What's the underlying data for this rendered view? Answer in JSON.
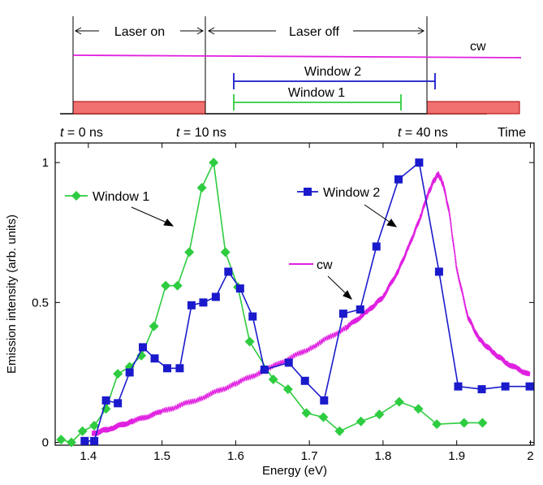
{
  "timing_diagram": {
    "time_axis_label": "Time",
    "ticks": [
      {
        "var": "t",
        "rest": " = 0 ns",
        "t_ns": 0
      },
      {
        "var": "t",
        "rest": " = 10 ns",
        "t_ns": 10
      },
      {
        "var": "t",
        "rest": " = 40 ns",
        "t_ns": 40
      }
    ],
    "laser_on_label": "Laser on",
    "laser_off_label": "Laser off",
    "cw_label": "cw",
    "window1": {
      "label": "Window 1",
      "start_ns": 12,
      "end_ns": 37,
      "color": "#2ecc40"
    },
    "window2": {
      "label": "Window 2",
      "start_ns": 12,
      "end_ns": 41,
      "color": "#1a1acc"
    },
    "pulse_color": "#f07070",
    "cw_color": "#e020e0"
  },
  "chart_data": {
    "type": "line",
    "xlabel": "Energy (eV)",
    "ylabel": "Emission intensity (arb. units)",
    "xlim": [
      1.355,
      2.005
    ],
    "ylim": [
      -0.01,
      1.07
    ],
    "xticks": [
      1.4,
      1.5,
      1.6,
      1.7,
      1.8,
      1.9,
      2.0
    ],
    "xtick_labels": [
      "1.4",
      "1.5",
      "1.6",
      "1.7",
      "1.8",
      "1.9",
      "2"
    ],
    "yticks": [
      0,
      0.5,
      1
    ],
    "ytick_labels": [
      "0",
      "0.5",
      "1"
    ],
    "grid": false,
    "series": [
      {
        "name": "Window 1",
        "color": "#2ecc40",
        "marker": "diamond",
        "x": [
          1.363,
          1.377,
          1.392,
          1.408,
          1.424,
          1.44,
          1.456,
          1.472,
          1.489,
          1.505,
          1.521,
          1.537,
          1.554,
          1.57,
          1.586,
          1.603,
          1.619,
          1.651,
          1.671,
          1.696,
          1.719,
          1.741,
          1.77,
          1.795,
          1.822,
          1.848,
          1.873,
          1.91,
          1.935
        ],
        "y": [
          0.01,
          0.0,
          0.04,
          0.06,
          0.12,
          0.245,
          0.27,
          0.31,
          0.415,
          0.56,
          0.56,
          0.68,
          0.91,
          1.0,
          0.68,
          0.555,
          0.36,
          0.225,
          0.19,
          0.105,
          0.09,
          0.04,
          0.075,
          0.1,
          0.145,
          0.12,
          0.065,
          0.07,
          0.07
        ]
      },
      {
        "name": "Window 2",
        "color": "#1a1acc",
        "marker": "square",
        "x": [
          1.395,
          1.408,
          1.424,
          1.44,
          1.456,
          1.474,
          1.49,
          1.507,
          1.524,
          1.54,
          1.556,
          1.573,
          1.59,
          1.606,
          1.623,
          1.639,
          1.672,
          1.694,
          1.72,
          1.746,
          1.769,
          1.791,
          1.821,
          1.849,
          1.876,
          1.902,
          1.934,
          1.966,
          1.999
        ],
        "y": [
          0.005,
          0.005,
          0.15,
          0.14,
          0.25,
          0.34,
          0.3,
          0.265,
          0.265,
          0.49,
          0.5,
          0.52,
          0.61,
          0.55,
          0.45,
          0.26,
          0.285,
          0.22,
          0.15,
          0.46,
          0.475,
          0.7,
          0.94,
          1.0,
          0.61,
          0.2,
          0.19,
          0.2,
          0.2
        ]
      },
      {
        "name": "cw",
        "color": "#e020e0",
        "marker": "none",
        "x": [
          1.405,
          1.43,
          1.46,
          1.5,
          1.55,
          1.6,
          1.65,
          1.7,
          1.75,
          1.78,
          1.8,
          1.82,
          1.835,
          1.85,
          1.86,
          1.868,
          1.875,
          1.882,
          1.89,
          1.9,
          1.915,
          1.93,
          1.95,
          1.97,
          2.0
        ],
        "y": [
          0.03,
          0.05,
          0.075,
          0.11,
          0.155,
          0.21,
          0.27,
          0.335,
          0.41,
          0.47,
          0.52,
          0.61,
          0.7,
          0.8,
          0.88,
          0.93,
          0.96,
          0.92,
          0.82,
          0.62,
          0.45,
          0.37,
          0.32,
          0.28,
          0.24
        ]
      }
    ]
  }
}
